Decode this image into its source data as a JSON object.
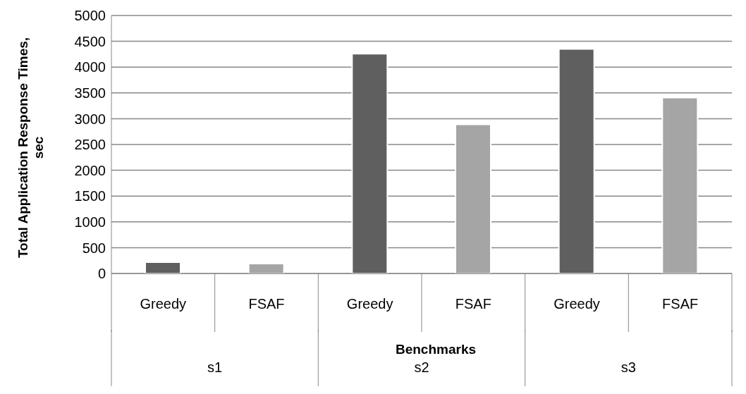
{
  "chart_data": {
    "type": "bar",
    "categories": [
      "Greedy",
      "FSAF",
      "Greedy",
      "FSAF",
      "Greedy",
      "FSAF"
    ],
    "values": [
      220,
      190,
      4260,
      2890,
      4350,
      3410
    ],
    "colors": [
      "#5f5f5f",
      "#a5a5a5",
      "#5f5f5f",
      "#a5a5a5",
      "#5f5f5f",
      "#a5a5a5"
    ],
    "annotations": [
      "s1",
      "s2",
      "s3"
    ],
    "xlabel": "Benchmarks",
    "ylabel": "Total Application Response Times, sec",
    "ylim": [
      0,
      5000
    ],
    "yticks": [
      0,
      500,
      1000,
      1500,
      2000,
      2500,
      3000,
      3500,
      4000,
      4500,
      5000
    ],
    "grid": "y"
  }
}
